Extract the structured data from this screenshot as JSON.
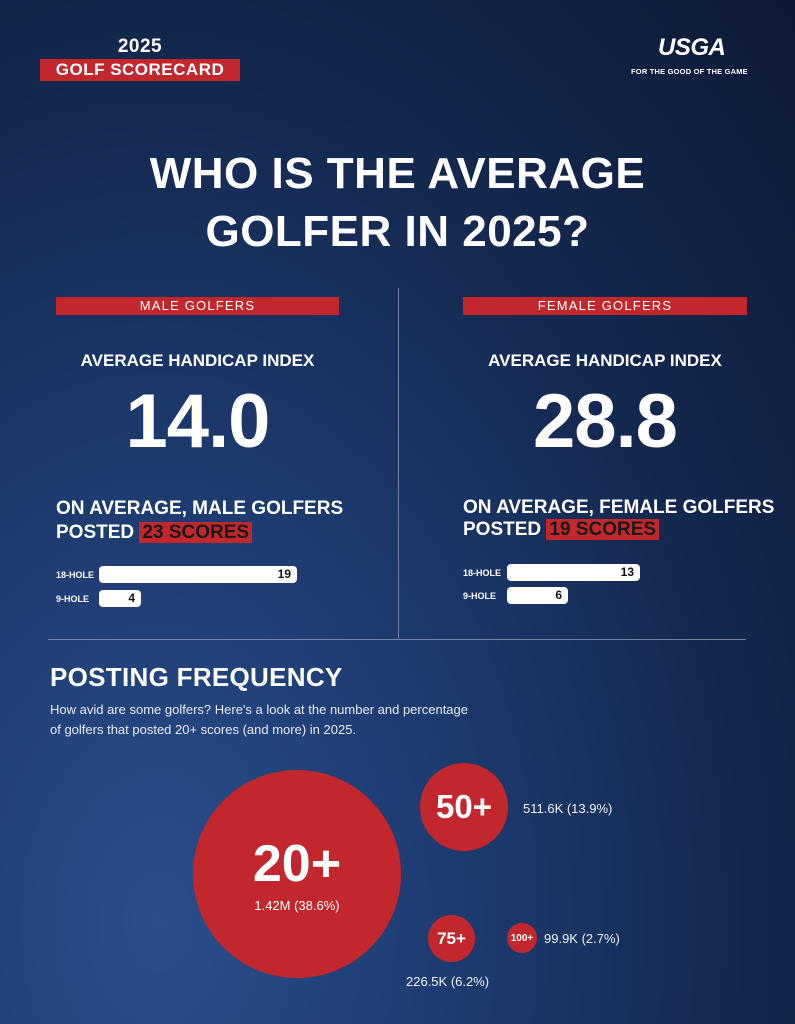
{
  "header": {
    "year": "2025",
    "badge": "GOLF SCORECARD",
    "logo": "USGA",
    "logo_tagline": "FOR THE GOOD OF THE GAME"
  },
  "headline": {
    "line1": "WHO IS THE AVERAGE",
    "line2": "GOLFER IN 2025?"
  },
  "male": {
    "tag": "MALE GOLFERS",
    "label": "AVERAGE HANDICAP INDEX",
    "value": "14.0",
    "posted_line1": "ON AVERAGE, MALE GOLFERS",
    "posted_prefix": "POSTED",
    "posted_highlight": "23 SCORES",
    "bars": [
      {
        "label": "18-HOLE",
        "value": "19"
      },
      {
        "label": "9-HOLE",
        "value": "4"
      }
    ]
  },
  "female": {
    "tag": "FEMALE GOLFERS",
    "label": "AVERAGE HANDICAP INDEX",
    "value": "28.8",
    "posted_line1": "ON AVERAGE, FEMALE GOLFERS",
    "posted_prefix": "POSTED",
    "posted_highlight": "19 SCORES",
    "bars": [
      {
        "label": "18-HOLE",
        "value": "13"
      },
      {
        "label": "9-HOLE",
        "value": "6"
      }
    ]
  },
  "frequency": {
    "title": "POSTING FREQUENCY",
    "desc_line1": "How avid are some golfers? Here's a look at the number and percentage",
    "desc_line2": "of golfers that posted 20+ scores (and more) in 2025.",
    "bubbles": [
      {
        "label": "20+",
        "stat": "1.42M (38.6%)"
      },
      {
        "label": "50+",
        "stat": "511.6K (13.9%)"
      },
      {
        "label": "75+",
        "stat": "226.5K (6.2%)"
      },
      {
        "label": "100+",
        "stat": "99.9K (2.7%)"
      }
    ]
  },
  "colors": {
    "accent": "#c1272d",
    "bg_dark": "#0d1a36",
    "bg_light": "#2a4d8c"
  }
}
